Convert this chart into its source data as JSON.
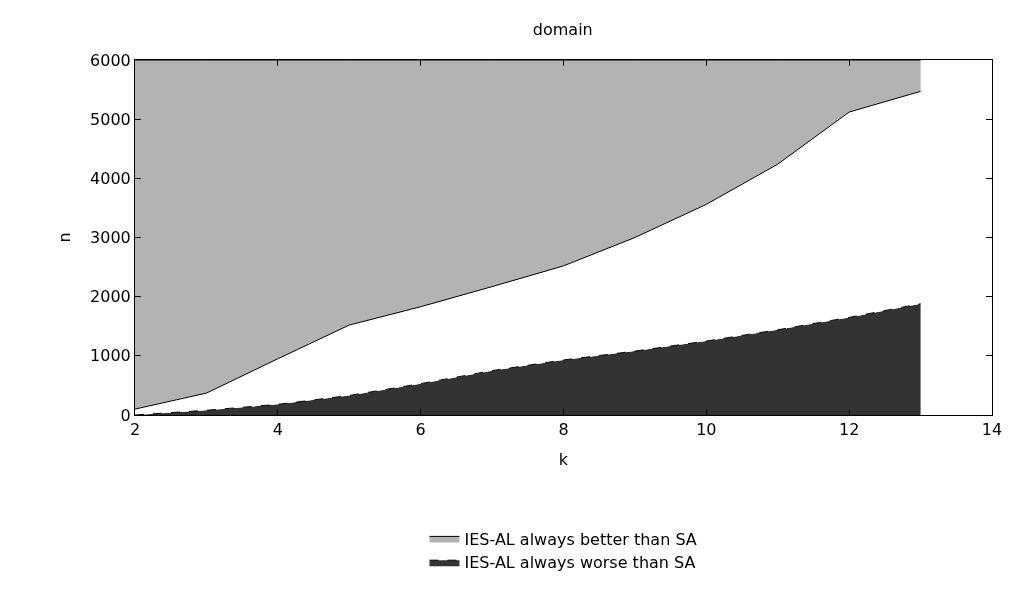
{
  "chart_data": {
    "type": "area",
    "title": "domain",
    "xlabel": "k",
    "ylabel": "n",
    "x": [
      2,
      3,
      4,
      5,
      6,
      7,
      8,
      9,
      10,
      11,
      12,
      13
    ],
    "stacked": true,
    "series": [
      {
        "name": "IES-AL always worse than SA",
        "color": "#333333",
        "values": [
          0,
          80,
          180,
          330,
          530,
          750,
          930,
          1080,
          1250,
          1440,
          1650,
          1880
        ],
        "line_style": "dashed"
      },
      {
        "color": "#ffffff",
        "values": [
          100,
          290,
          770,
          1190,
          1300,
          1420,
          1590,
          1920,
          2310,
          2800,
          3470,
          3590
        ]
      },
      {
        "name": "IES-AL always better than SA",
        "color": "#b3b3b3",
        "values": [
          5900,
          5630,
          5050,
          4480,
          4170,
          3830,
          3480,
          3000,
          2440,
          1760,
          880,
          530
        ]
      }
    ],
    "xlim": [
      2,
      14
    ],
    "xticks": [
      2,
      4,
      6,
      8,
      10,
      12,
      14
    ],
    "ylim": [
      0,
      6000
    ],
    "yticks": [
      0,
      1000,
      2000,
      3000,
      4000,
      5000,
      6000
    ],
    "legend": "bottom"
  }
}
